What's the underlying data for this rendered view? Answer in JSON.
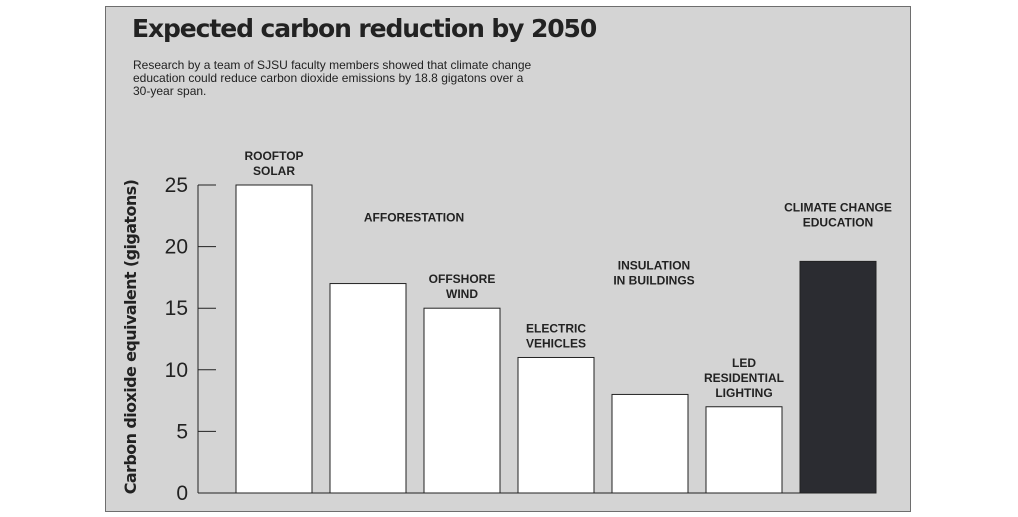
{
  "chart_data": {
    "type": "bar",
    "title": "Expected carbon reduction by 2050",
    "subtitle": "Research by a team of SJSU faculty members showed that climate change education could reduce carbon dioxide emissions by 18.8 gigatons over a 30-year span.",
    "xlabel": "",
    "ylabel": "Carbon dioxide equivalent (gigatons)",
    "ylim": [
      0,
      25
    ],
    "yticks": [
      0,
      5,
      10,
      15,
      20,
      25
    ],
    "grid": false,
    "categories": [
      [
        "ROOFTOP",
        "SOLAR"
      ],
      [
        "AFFORESTATION"
      ],
      [
        "OFFSHORE",
        "WIND"
      ],
      [
        "ELECTRIC",
        "VEHICLES"
      ],
      [
        "INSULATION",
        "IN BUILDINGS"
      ],
      [
        "LED",
        "RESIDENTIAL",
        "LIGHTING"
      ],
      [
        "CLIMATE CHANGE",
        "EDUCATION"
      ]
    ],
    "values": [
      25,
      17,
      15,
      11,
      8,
      7,
      18.8
    ],
    "highlight_index": 6,
    "colors": {
      "bar": "#ffffff",
      "highlight": "#2b2c31",
      "stroke": "#222222",
      "background": "#d4d4d4"
    }
  }
}
